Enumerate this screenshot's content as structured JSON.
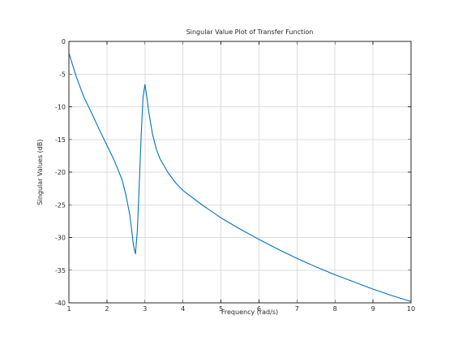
{
  "chart_data": {
    "type": "line",
    "title": "Singular Value Plot of Transfer Function",
    "xlabel": "Frequency (rad/s)",
    "ylabel": "Singular Values (dB)",
    "xlim": [
      1,
      10
    ],
    "ylim": [
      -40,
      0
    ],
    "xticks": [
      "1",
      "2",
      "3",
      "4",
      "5",
      "6",
      "7",
      "8",
      "9",
      "10"
    ],
    "yticks": [
      "0",
      "-5",
      "-10",
      "-15",
      "-20",
      "-25",
      "-30",
      "-35",
      "-40"
    ],
    "grid": true,
    "series": [
      {
        "color": "#0072bd",
        "x": [
          1.0,
          1.2,
          1.4,
          1.6,
          1.8,
          2.0,
          2.2,
          2.4,
          2.5,
          2.6,
          2.65,
          2.7,
          2.75,
          2.8,
          2.85,
          2.9,
          2.95,
          3.0,
          3.05,
          3.1,
          3.2,
          3.3,
          3.4,
          3.6,
          3.8,
          4.0,
          4.5,
          5.0,
          5.5,
          6.0,
          6.5,
          7.0,
          7.5,
          8.0,
          8.5,
          9.0,
          9.5,
          10.0
        ],
        "y": [
          -1.8,
          -5.5,
          -8.6,
          -11.0,
          -13.5,
          -15.9,
          -18.3,
          -21.2,
          -23.5,
          -26.5,
          -28.8,
          -31.3,
          -32.5,
          -29.0,
          -22.0,
          -14.5,
          -8.5,
          -6.6,
          -8.5,
          -10.8,
          -14.2,
          -16.5,
          -18.0,
          -20.0,
          -21.6,
          -22.8,
          -25.0,
          -27.0,
          -28.7,
          -30.3,
          -31.8,
          -33.2,
          -34.5,
          -35.7,
          -36.8,
          -37.9,
          -38.9,
          -39.8
        ]
      }
    ]
  }
}
